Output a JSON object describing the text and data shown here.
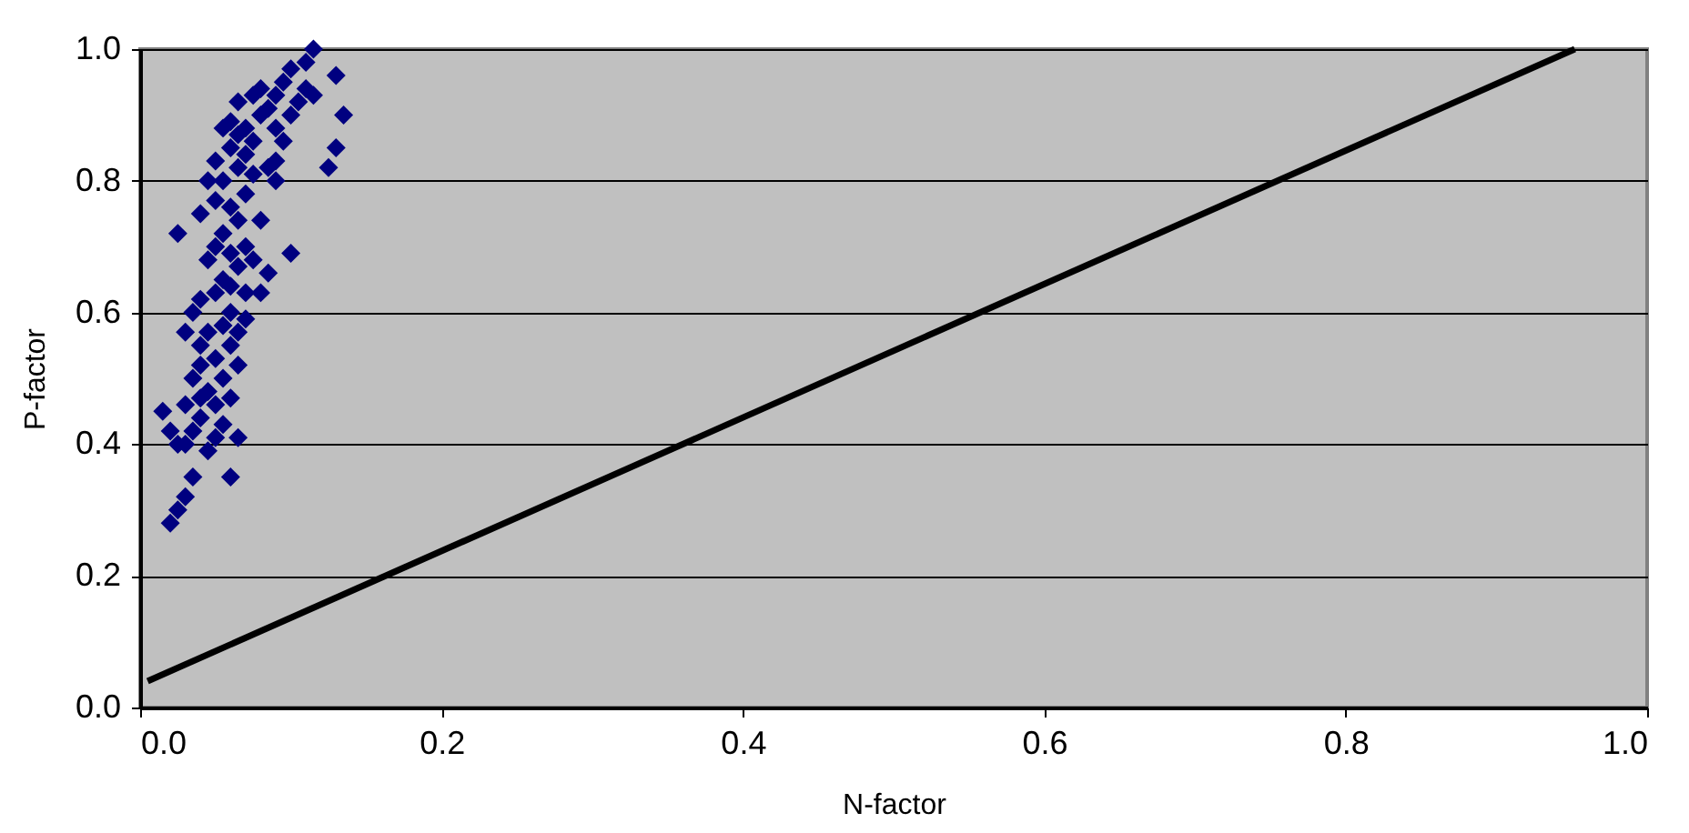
{
  "chart_data": {
    "type": "scatter",
    "xlabel": "N-factor",
    "ylabel": "P-factor",
    "xlim": [
      0,
      1
    ],
    "ylim": [
      0,
      1
    ],
    "xticks": [
      {
        "value": 0,
        "label": "0.0"
      },
      {
        "value": 0.2,
        "label": "0.2"
      },
      {
        "value": 0.4,
        "label": "0.4"
      },
      {
        "value": 0.6,
        "label": "0.6"
      },
      {
        "value": 0.8,
        "label": "0.8"
      },
      {
        "value": 1,
        "label": "1.0"
      }
    ],
    "yticks": [
      {
        "value": 0,
        "label": "0.0"
      },
      {
        "value": 0.2,
        "label": "0.2"
      },
      {
        "value": 0.4,
        "label": "0.4"
      },
      {
        "value": 0.6,
        "label": "0.6"
      },
      {
        "value": 0.8,
        "label": "0.8"
      },
      {
        "value": 1,
        "label": "1.0"
      }
    ],
    "grid": "y",
    "series": [
      {
        "color": "#000080",
        "marker": "diamond",
        "x": [
          0.02,
          0.025,
          0.03,
          0.035,
          0.06,
          0.015,
          0.02,
          0.025,
          0.03,
          0.035,
          0.04,
          0.045,
          0.05,
          0.055,
          0.065,
          0.04,
          0.045,
          0.05,
          0.055,
          0.06,
          0.035,
          0.04,
          0.05,
          0.06,
          0.065,
          0.045,
          0.055,
          0.06,
          0.065,
          0.07,
          0.03,
          0.035,
          0.04,
          0.05,
          0.055,
          0.06,
          0.07,
          0.08,
          0.025,
          0.045,
          0.05,
          0.055,
          0.06,
          0.065,
          0.07,
          0.075,
          0.04,
          0.05,
          0.055,
          0.06,
          0.065,
          0.07,
          0.08,
          0.045,
          0.05,
          0.06,
          0.065,
          0.07,
          0.075,
          0.085,
          0.09,
          0.055,
          0.06,
          0.065,
          0.07,
          0.075,
          0.08,
          0.085,
          0.09,
          0.095,
          0.1,
          0.065,
          0.075,
          0.08,
          0.09,
          0.095,
          0.105,
          0.11,
          0.115,
          0.1,
          0.11,
          0.115,
          0.13,
          0.135,
          0.13,
          0.125,
          0.1,
          0.085,
          0.09,
          0.04,
          0.03
        ],
        "values": [
          0.28,
          0.3,
          0.32,
          0.35,
          0.35,
          0.45,
          0.42,
          0.4,
          0.4,
          0.42,
          0.44,
          0.39,
          0.41,
          0.43,
          0.41,
          0.47,
          0.48,
          0.46,
          0.5,
          0.47,
          0.5,
          0.52,
          0.53,
          0.55,
          0.52,
          0.57,
          0.58,
          0.6,
          0.57,
          0.59,
          0.57,
          0.6,
          0.62,
          0.63,
          0.65,
          0.64,
          0.63,
          0.63,
          0.72,
          0.68,
          0.7,
          0.72,
          0.69,
          0.67,
          0.7,
          0.68,
          0.75,
          0.77,
          0.8,
          0.76,
          0.74,
          0.78,
          0.74,
          0.8,
          0.83,
          0.85,
          0.82,
          0.84,
          0.81,
          0.82,
          0.8,
          0.88,
          0.89,
          0.87,
          0.88,
          0.86,
          0.9,
          0.91,
          0.88,
          0.86,
          0.9,
          0.92,
          0.93,
          0.94,
          0.93,
          0.95,
          0.92,
          0.94,
          0.93,
          0.97,
          0.98,
          1.0,
          0.96,
          0.9,
          0.85,
          0.82,
          0.69,
          0.66,
          0.83,
          0.55,
          0.46
        ]
      },
      {
        "type": "line",
        "color": "#000000",
        "line_style": "solid",
        "x": [
          0.005,
          0.952
        ],
        "values": [
          0.04,
          1.0
        ]
      }
    ]
  }
}
